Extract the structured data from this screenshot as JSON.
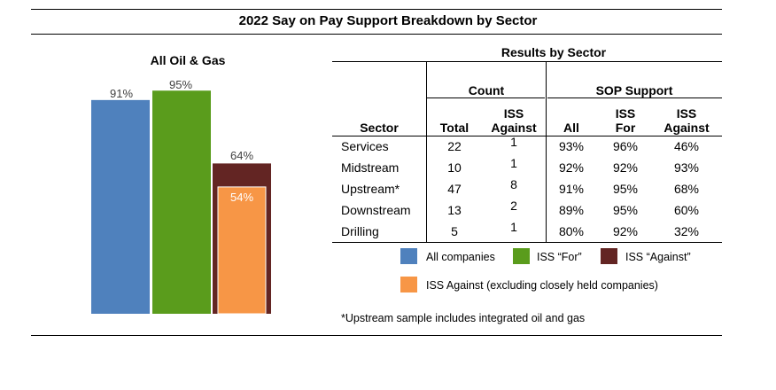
{
  "title": "2022 Say on Pay Support Breakdown by Sector",
  "chart_data": {
    "type": "bar",
    "title": "All Oil & Gas",
    "ylim": [
      0,
      100
    ],
    "bars": [
      {
        "name": "All companies",
        "value": 91,
        "label": "91%",
        "color": "#4f81bd"
      },
      {
        "name": "ISS “For”",
        "value": 95,
        "label": "95%",
        "color": "#5a9c1c"
      },
      {
        "name": "ISS “Against”",
        "value": 64,
        "label": "64%",
        "color": "#632523"
      },
      {
        "name": "ISS Against (excluding closely held companies)",
        "value": 54,
        "label": "54%",
        "color": "#f79646",
        "overlay_on": 2
      }
    ]
  },
  "table": {
    "title": "Results by Sector",
    "group_headers": {
      "count": "Count",
      "sop": "SOP Support"
    },
    "col_headers": {
      "sector": "Sector",
      "total": "Total",
      "iss_against_line1": "ISS",
      "iss_against_line2": "Against",
      "all": "All",
      "iss_for_line1": "ISS",
      "iss_for_line2": "For",
      "sop_iss_against_line1": "ISS",
      "sop_iss_against_line2": "Against"
    },
    "rows": [
      {
        "sector": "Services",
        "total": "22",
        "iss_against": "1",
        "all": "93%",
        "iss_for": "96%",
        "sop_iss_against": "46%"
      },
      {
        "sector": "Midstream",
        "total": "10",
        "iss_against": "1",
        "all": "92%",
        "iss_for": "92%",
        "sop_iss_against": "93%"
      },
      {
        "sector": "Upstream*",
        "total": "47",
        "iss_against": "8",
        "all": "91%",
        "iss_for": "95%",
        "sop_iss_against": "68%"
      },
      {
        "sector": "Downstream",
        "total": "13",
        "iss_against": "2",
        "all": "89%",
        "iss_for": "95%",
        "sop_iss_against": "60%"
      },
      {
        "sector": "Drilling",
        "total": "5",
        "iss_against": "1",
        "all": "80%",
        "iss_for": "92%",
        "sop_iss_against": "32%"
      }
    ]
  },
  "legend": [
    {
      "label": "All companies",
      "color": "#4f81bd"
    },
    {
      "label": "ISS “For”",
      "color": "#5a9c1c"
    },
    {
      "label": "ISS “Against”",
      "color": "#632523"
    },
    {
      "label": "ISS Against (excluding closely held companies)",
      "color": "#f79646"
    }
  ],
  "footnote": "*Upstream sample includes integrated oil and gas"
}
